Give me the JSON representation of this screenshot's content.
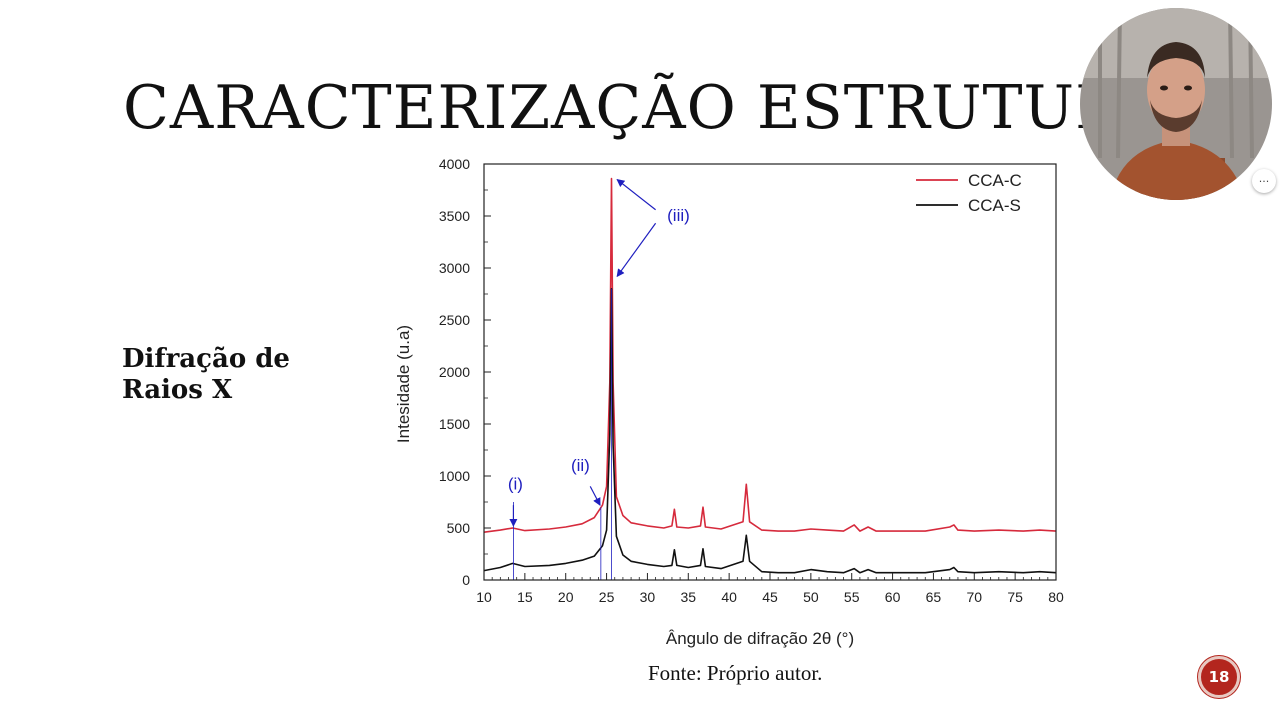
{
  "slide": {
    "title": "CARACTERIZAÇÃO ESTRUTURAL",
    "subtitle": "Difração de Raios X",
    "caption": "Fonte: Próprio autor.",
    "page_number": "18",
    "badge_color": "#b3261e"
  },
  "webcam": {
    "more_options_label": "···"
  },
  "chart_data": {
    "type": "line",
    "xlabel": "Ângulo de difração 2θ (°)",
    "ylabel": "Intesidade (u.a)",
    "xlim": [
      10,
      80
    ],
    "ylim": [
      0,
      4000
    ],
    "x_ticks": [
      10,
      15,
      20,
      25,
      30,
      35,
      40,
      45,
      50,
      55,
      60,
      65,
      70,
      75,
      80
    ],
    "y_ticks": [
      0,
      500,
      1000,
      1500,
      2000,
      2500,
      3000,
      3500,
      4000
    ],
    "legend_position": "top-right",
    "series": [
      {
        "name": "CCA-C",
        "color": "#d62a3c",
        "x": [
          10,
          12,
          13.5,
          15,
          18,
          20,
          22,
          23.5,
          24.5,
          25,
          25.4,
          25.6,
          25.8,
          26.2,
          27,
          28,
          30,
          32,
          33,
          33.3,
          33.6,
          35,
          36.5,
          36.8,
          37.1,
          39,
          41.7,
          42.1,
          42.5,
          44,
          46,
          48,
          50,
          52,
          54,
          55.3,
          56,
          57,
          58,
          60,
          64,
          67,
          67.5,
          68,
          70,
          73,
          76,
          78,
          80
        ],
        "y": [
          460,
          480,
          500,
          475,
          490,
          510,
          540,
          600,
          720,
          900,
          1900,
          3860,
          1900,
          800,
          620,
          550,
          520,
          500,
          520,
          680,
          510,
          500,
          520,
          700,
          510,
          490,
          560,
          920,
          560,
          480,
          470,
          470,
          490,
          480,
          470,
          530,
          470,
          510,
          470,
          470,
          470,
          510,
          530,
          480,
          470,
          480,
          470,
          480,
          470
        ]
      },
      {
        "name": "CCA-S",
        "color": "#111111",
        "x": [
          10,
          12,
          13.5,
          15,
          18,
          20,
          22,
          23.5,
          24.5,
          25,
          25.4,
          25.6,
          25.8,
          26.2,
          27,
          28,
          30,
          32,
          33,
          33.3,
          33.6,
          35,
          36.5,
          36.8,
          37.1,
          39,
          41.7,
          42.1,
          42.5,
          44,
          46,
          48,
          50,
          52,
          54,
          55.3,
          56,
          57,
          58,
          60,
          64,
          67,
          67.5,
          68,
          70,
          73,
          76,
          78,
          80
        ],
        "y": [
          90,
          120,
          160,
          130,
          140,
          160,
          190,
          230,
          330,
          480,
          1400,
          2800,
          1300,
          420,
          240,
          180,
          150,
          130,
          140,
          290,
          140,
          120,
          140,
          300,
          130,
          110,
          180,
          430,
          180,
          80,
          70,
          70,
          100,
          80,
          70,
          110,
          70,
          100,
          70,
          70,
          70,
          100,
          120,
          80,
          70,
          80,
          70,
          80,
          70
        ]
      }
    ],
    "annotations": [
      {
        "label": "(i)",
        "x": 13.6,
        "color": "#1f1fbf"
      },
      {
        "label": "(ii)",
        "x": 24.3,
        "color": "#1f1fbf"
      },
      {
        "label": "(iii)",
        "x": 25.6,
        "color": "#1f1fbf"
      }
    ]
  }
}
